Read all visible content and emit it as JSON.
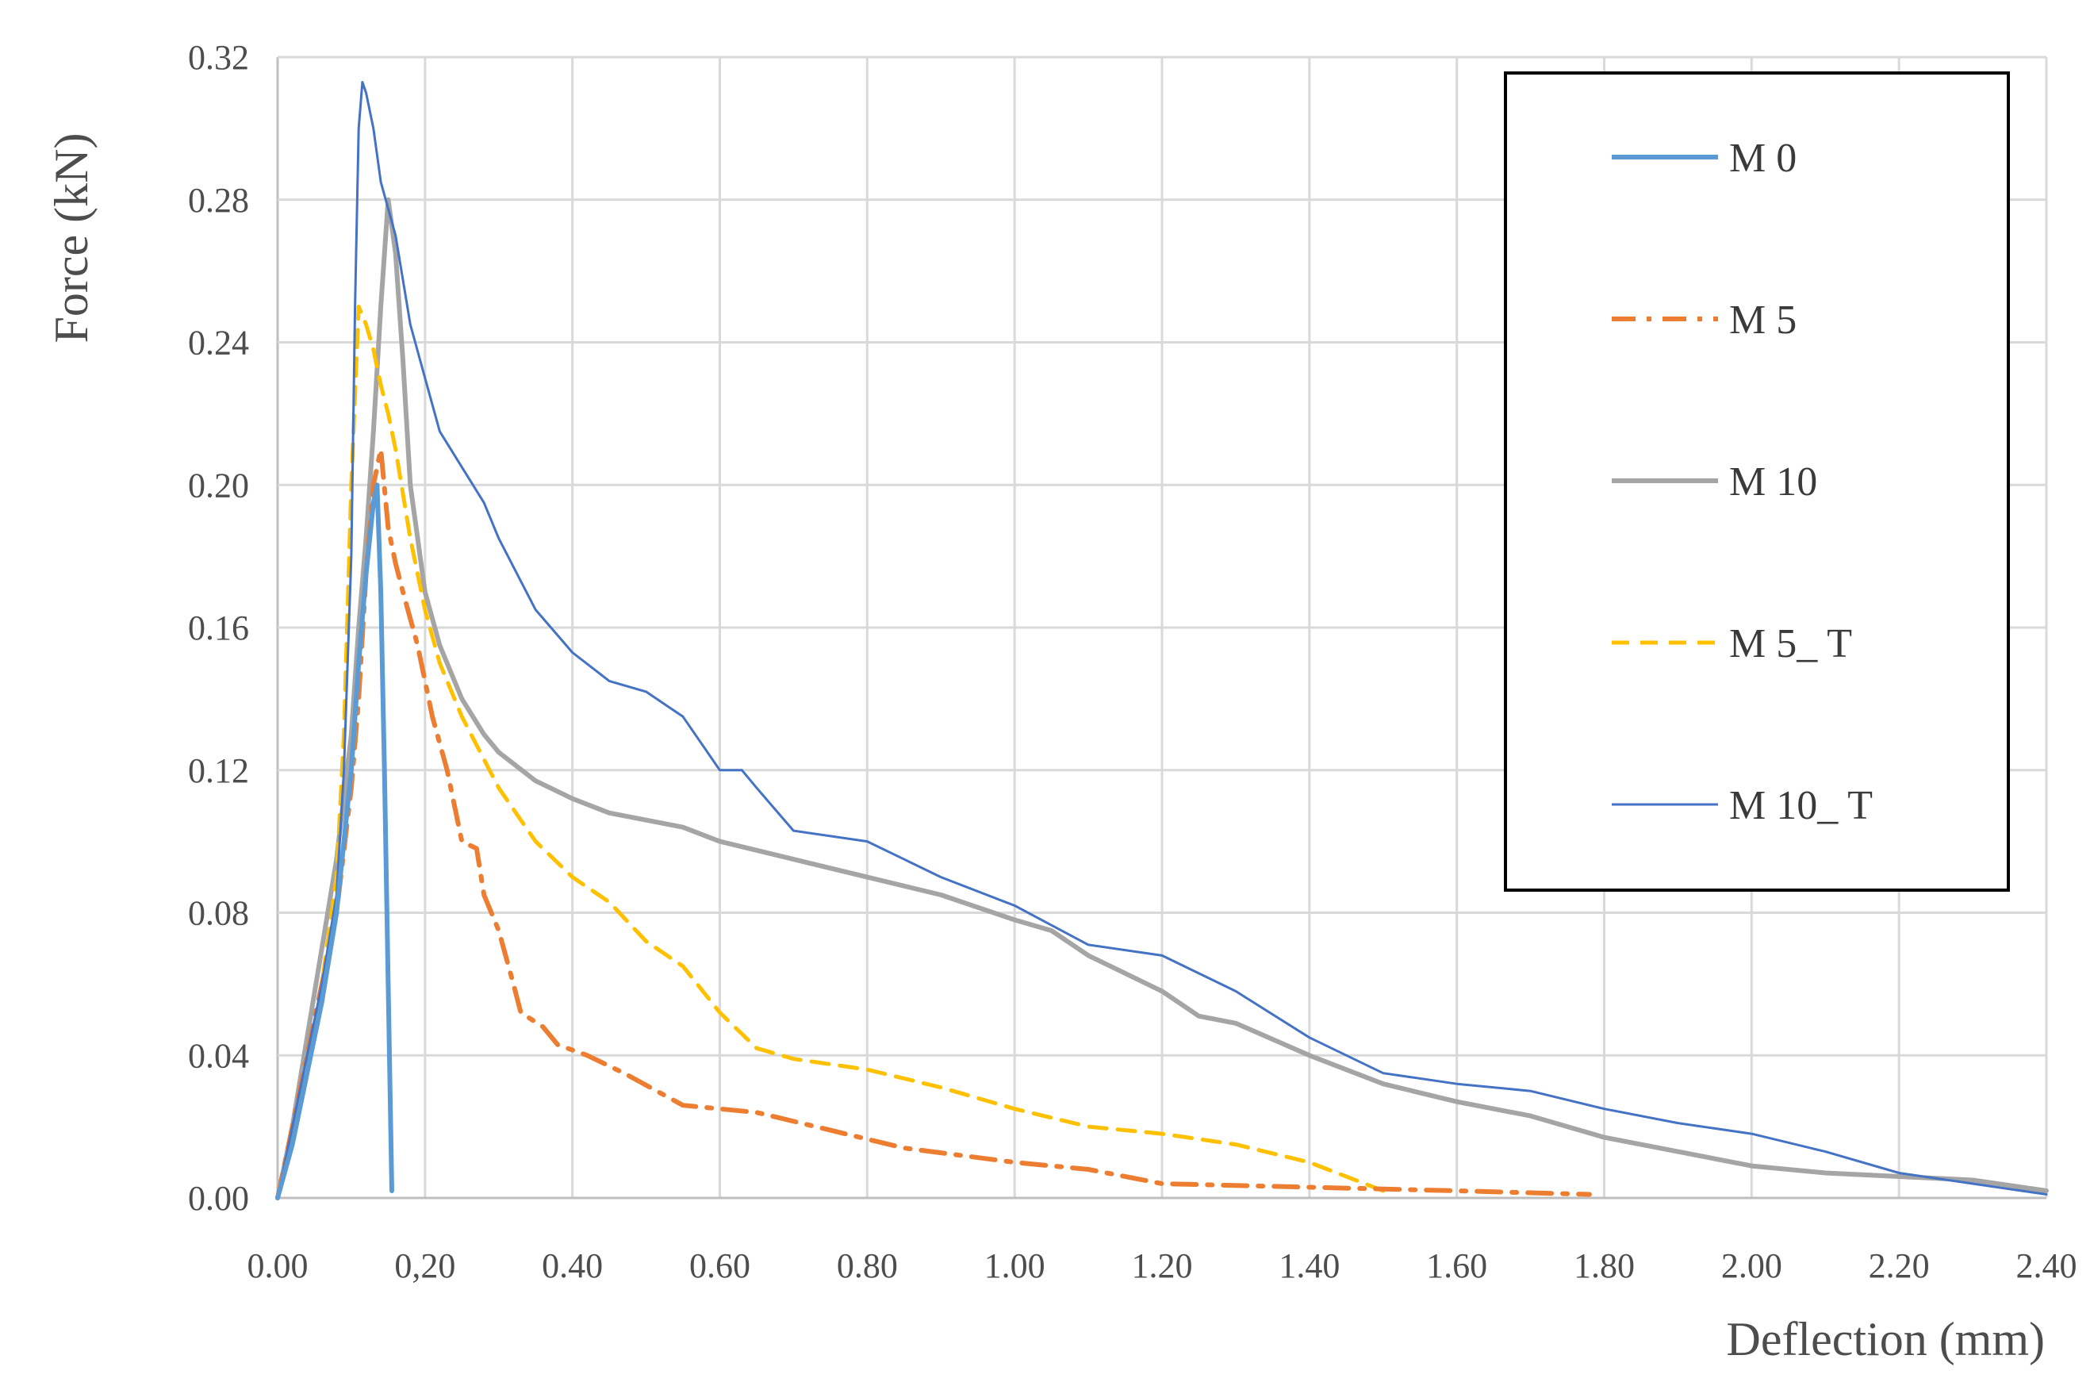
{
  "chart_data": {
    "type": "line",
    "xlabel": "Deflection (mm)",
    "ylabel": "Force (kN)",
    "xlim": [
      0,
      2.4
    ],
    "ylim": [
      0,
      0.32
    ],
    "grid": true,
    "legend_position": "top-right",
    "x_ticks": [
      "0.00",
      "0,20",
      "0.40",
      "0.60",
      "0.80",
      "1.00",
      "1.20",
      "1.40",
      "1.60",
      "1.80",
      "2.00",
      "2.20",
      "2.40"
    ],
    "y_ticks": [
      "0.00",
      "0.04",
      "0.08",
      "0.12",
      "0.16",
      "0.20",
      "0.24",
      "0.28",
      "0.32"
    ],
    "series": [
      {
        "name": "M 0",
        "color": "#5b9bd5",
        "style": "solid-thick",
        "points": [
          [
            0,
            0
          ],
          [
            0.02,
            0.015
          ],
          [
            0.04,
            0.035
          ],
          [
            0.06,
            0.055
          ],
          [
            0.08,
            0.08
          ],
          [
            0.1,
            0.12
          ],
          [
            0.11,
            0.15
          ],
          [
            0.12,
            0.175
          ],
          [
            0.13,
            0.195
          ],
          [
            0.135,
            0.2
          ],
          [
            0.14,
            0.17
          ],
          [
            0.145,
            0.12
          ],
          [
            0.15,
            0.06
          ],
          [
            0.155,
            0.002
          ]
        ]
      },
      {
        "name": "M 5",
        "color": "#ed7d31",
        "style": "dash-dot",
        "points": [
          [
            0,
            0
          ],
          [
            0.02,
            0.02
          ],
          [
            0.04,
            0.04
          ],
          [
            0.06,
            0.06
          ],
          [
            0.08,
            0.08
          ],
          [
            0.1,
            0.115
          ],
          [
            0.11,
            0.14
          ],
          [
            0.12,
            0.175
          ],
          [
            0.13,
            0.2
          ],
          [
            0.14,
            0.21
          ],
          [
            0.15,
            0.188
          ],
          [
            0.16,
            0.178
          ],
          [
            0.17,
            0.17
          ],
          [
            0.19,
            0.155
          ],
          [
            0.21,
            0.135
          ],
          [
            0.23,
            0.12
          ],
          [
            0.25,
            0.1
          ],
          [
            0.27,
            0.098
          ],
          [
            0.28,
            0.085
          ],
          [
            0.3,
            0.075
          ],
          [
            0.32,
            0.06
          ],
          [
            0.33,
            0.052
          ],
          [
            0.36,
            0.048
          ],
          [
            0.38,
            0.043
          ],
          [
            0.42,
            0.04
          ],
          [
            0.47,
            0.035
          ],
          [
            0.55,
            0.026
          ],
          [
            0.65,
            0.024
          ],
          [
            0.75,
            0.019
          ],
          [
            0.85,
            0.014
          ],
          [
            1.0,
            0.01
          ],
          [
            1.1,
            0.008
          ],
          [
            1.2,
            0.004
          ],
          [
            1.4,
            0.003
          ],
          [
            1.6,
            0.002
          ],
          [
            1.78,
            0.001
          ]
        ]
      },
      {
        "name": "M 10",
        "color": "#a5a5a5",
        "style": "solid-thick",
        "points": [
          [
            0,
            0
          ],
          [
            0.02,
            0.02
          ],
          [
            0.04,
            0.045
          ],
          [
            0.06,
            0.07
          ],
          [
            0.08,
            0.095
          ],
          [
            0.1,
            0.13
          ],
          [
            0.11,
            0.16
          ],
          [
            0.12,
            0.185
          ],
          [
            0.13,
            0.215
          ],
          [
            0.14,
            0.25
          ],
          [
            0.15,
            0.28
          ],
          [
            0.16,
            0.265
          ],
          [
            0.17,
            0.235
          ],
          [
            0.18,
            0.2
          ],
          [
            0.2,
            0.17
          ],
          [
            0.22,
            0.155
          ],
          [
            0.25,
            0.14
          ],
          [
            0.28,
            0.13
          ],
          [
            0.3,
            0.125
          ],
          [
            0.35,
            0.117
          ],
          [
            0.4,
            0.112
          ],
          [
            0.45,
            0.108
          ],
          [
            0.5,
            0.106
          ],
          [
            0.55,
            0.104
          ],
          [
            0.6,
            0.1
          ],
          [
            0.7,
            0.095
          ],
          [
            0.8,
            0.09
          ],
          [
            0.9,
            0.085
          ],
          [
            1.0,
            0.078
          ],
          [
            1.05,
            0.075
          ],
          [
            1.1,
            0.068
          ],
          [
            1.2,
            0.058
          ],
          [
            1.25,
            0.051
          ],
          [
            1.3,
            0.049
          ],
          [
            1.4,
            0.04
          ],
          [
            1.5,
            0.032
          ],
          [
            1.6,
            0.027
          ],
          [
            1.7,
            0.023
          ],
          [
            1.8,
            0.017
          ],
          [
            1.9,
            0.013
          ],
          [
            2.0,
            0.009
          ],
          [
            2.1,
            0.007
          ],
          [
            2.2,
            0.006
          ],
          [
            2.3,
            0.005
          ],
          [
            2.4,
            0.002
          ]
        ]
      },
      {
        "name": "M 5_ T",
        "color": "#ffc000",
        "style": "dashed",
        "points": [
          [
            0,
            0
          ],
          [
            0.02,
            0.015
          ],
          [
            0.04,
            0.035
          ],
          [
            0.06,
            0.06
          ],
          [
            0.08,
            0.09
          ],
          [
            0.09,
            0.13
          ],
          [
            0.1,
            0.2
          ],
          [
            0.11,
            0.25
          ],
          [
            0.12,
            0.245
          ],
          [
            0.13,
            0.238
          ],
          [
            0.14,
            0.228
          ],
          [
            0.15,
            0.22
          ],
          [
            0.16,
            0.21
          ],
          [
            0.18,
            0.185
          ],
          [
            0.2,
            0.165
          ],
          [
            0.22,
            0.15
          ],
          [
            0.25,
            0.135
          ],
          [
            0.3,
            0.115
          ],
          [
            0.35,
            0.1
          ],
          [
            0.4,
            0.09
          ],
          [
            0.45,
            0.083
          ],
          [
            0.5,
            0.072
          ],
          [
            0.55,
            0.065
          ],
          [
            0.6,
            0.052
          ],
          [
            0.65,
            0.042
          ],
          [
            0.7,
            0.039
          ],
          [
            0.8,
            0.036
          ],
          [
            0.9,
            0.031
          ],
          [
            1.0,
            0.025
          ],
          [
            1.1,
            0.02
          ],
          [
            1.2,
            0.018
          ],
          [
            1.3,
            0.015
          ],
          [
            1.4,
            0.01
          ],
          [
            1.5,
            0.002
          ]
        ]
      },
      {
        "name": "M 10_ T",
        "color": "#4472c4",
        "style": "solid-thin",
        "points": [
          [
            0,
            0
          ],
          [
            0.02,
            0.02
          ],
          [
            0.04,
            0.04
          ],
          [
            0.06,
            0.06
          ],
          [
            0.08,
            0.085
          ],
          [
            0.09,
            0.12
          ],
          [
            0.1,
            0.18
          ],
          [
            0.105,
            0.25
          ],
          [
            0.11,
            0.3
          ],
          [
            0.115,
            0.313
          ],
          [
            0.12,
            0.31
          ],
          [
            0.13,
            0.3
          ],
          [
            0.14,
            0.285
          ],
          [
            0.16,
            0.27
          ],
          [
            0.18,
            0.245
          ],
          [
            0.2,
            0.23
          ],
          [
            0.22,
            0.215
          ],
          [
            0.25,
            0.205
          ],
          [
            0.28,
            0.195
          ],
          [
            0.3,
            0.185
          ],
          [
            0.35,
            0.165
          ],
          [
            0.4,
            0.153
          ],
          [
            0.45,
            0.145
          ],
          [
            0.5,
            0.142
          ],
          [
            0.55,
            0.135
          ],
          [
            0.6,
            0.12
          ],
          [
            0.63,
            0.12
          ],
          [
            0.65,
            0.115
          ],
          [
            0.7,
            0.103
          ],
          [
            0.8,
            0.1
          ],
          [
            0.9,
            0.09
          ],
          [
            1.0,
            0.082
          ],
          [
            1.1,
            0.071
          ],
          [
            1.2,
            0.068
          ],
          [
            1.3,
            0.058
          ],
          [
            1.4,
            0.045
          ],
          [
            1.5,
            0.035
          ],
          [
            1.6,
            0.032
          ],
          [
            1.7,
            0.03
          ],
          [
            1.8,
            0.025
          ],
          [
            1.9,
            0.021
          ],
          [
            2.0,
            0.018
          ],
          [
            2.1,
            0.013
          ],
          [
            2.2,
            0.007
          ],
          [
            2.3,
            0.004
          ],
          [
            2.4,
            0.001
          ]
        ]
      }
    ]
  }
}
